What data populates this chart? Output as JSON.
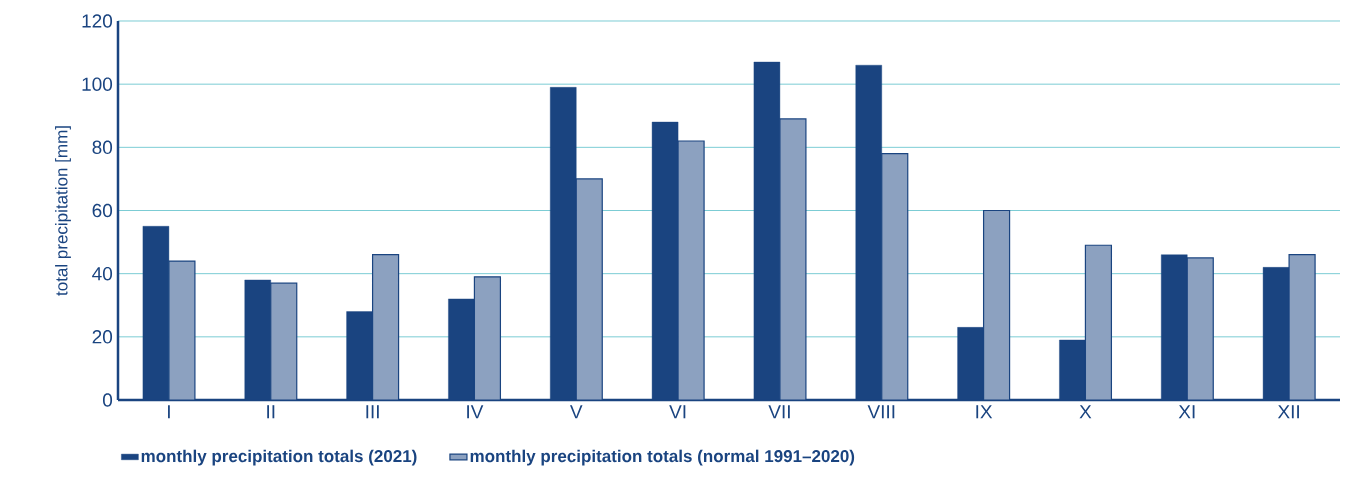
{
  "chart_data": {
    "type": "bar",
    "ylabel": "total precipitation [mm]",
    "categories": [
      "I",
      "II",
      "III",
      "IV",
      "V",
      "VI",
      "VII",
      "VIII",
      "IX",
      "X",
      "XI",
      "XII"
    ],
    "series": [
      {
        "name": "monthly precipitation totals (2021)",
        "color": "#1a4480",
        "values": [
          55,
          38,
          28,
          32,
          99,
          88,
          107,
          106,
          23,
          19,
          46,
          42
        ]
      },
      {
        "name": "monthly precipitation totals (normal 1991–2020)",
        "color": "#8ca1c0",
        "values": [
          44,
          37,
          46,
          39,
          70,
          82,
          89,
          78,
          60,
          49,
          45,
          46
        ]
      }
    ],
    "ylim": [
      0,
      120
    ],
    "yticks": [
      0,
      20,
      40,
      60,
      80,
      100,
      120
    ],
    "grid": "y",
    "legend": "bottom"
  }
}
